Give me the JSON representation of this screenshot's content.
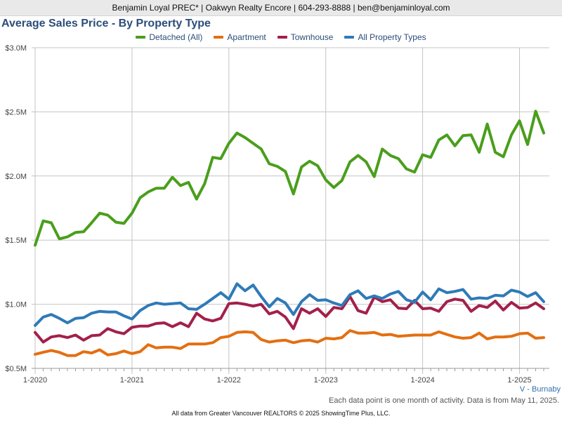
{
  "header": {
    "text": "Benjamin Loyal PREC* | Oakwyn Realty Encore | 604-293-8888 | ben@benjaminloyal.com"
  },
  "region_label": "V - Burnaby",
  "footnote": "Each data point is one month of activity. Data is from May 11, 2025.",
  "source_note": "All data from Greater Vancouver REALTORS © 2025 ShowingTime Plus, LLC.",
  "chart_data": {
    "type": "line",
    "title": "Average Sales Price - By Property Type",
    "legend_position": "top",
    "grid": true,
    "ylim": [
      500000,
      3000000
    ],
    "yticks": [
      {
        "value": 500000,
        "label": "$0.5M"
      },
      {
        "value": 1000000,
        "label": "$1.0M"
      },
      {
        "value": 1500000,
        "label": "$1.5M"
      },
      {
        "value": 2000000,
        "label": "$2.0M"
      },
      {
        "value": 2500000,
        "label": "$2.5M"
      },
      {
        "value": 3000000,
        "label": "$3.0M"
      }
    ],
    "xticks": [
      {
        "month": "2020-01",
        "label": "1-2020"
      },
      {
        "month": "2021-01",
        "label": "1-2021"
      },
      {
        "month": "2022-01",
        "label": "1-2022"
      },
      {
        "month": "2023-01",
        "label": "1-2023"
      },
      {
        "month": "2024-01",
        "label": "1-2024"
      },
      {
        "month": "2025-01",
        "label": "1-2025"
      }
    ],
    "x": [
      "2020-01",
      "2020-02",
      "2020-03",
      "2020-04",
      "2020-05",
      "2020-06",
      "2020-07",
      "2020-08",
      "2020-09",
      "2020-10",
      "2020-11",
      "2020-12",
      "2021-01",
      "2021-02",
      "2021-03",
      "2021-04",
      "2021-05",
      "2021-06",
      "2021-07",
      "2021-08",
      "2021-09",
      "2021-10",
      "2021-11",
      "2021-12",
      "2022-01",
      "2022-02",
      "2022-03",
      "2022-04",
      "2022-05",
      "2022-06",
      "2022-07",
      "2022-08",
      "2022-09",
      "2022-10",
      "2022-11",
      "2022-12",
      "2023-01",
      "2023-02",
      "2023-03",
      "2023-04",
      "2023-05",
      "2023-06",
      "2023-07",
      "2023-08",
      "2023-09",
      "2023-10",
      "2023-11",
      "2023-12",
      "2024-01",
      "2024-02",
      "2024-03",
      "2024-04",
      "2024-05",
      "2024-06",
      "2024-07",
      "2024-08",
      "2024-09",
      "2024-10",
      "2024-11",
      "2024-12",
      "2025-01",
      "2025-02",
      "2025-03",
      "2025-04"
    ],
    "series": [
      {
        "name": "Detached (All)",
        "color": "#4a9e1c",
        "values": [
          1460000,
          1650000,
          1635000,
          1510000,
          1525000,
          1560000,
          1565000,
          1635000,
          1710000,
          1695000,
          1640000,
          1630000,
          1710000,
          1830000,
          1875000,
          1905000,
          1905000,
          1990000,
          1925000,
          1950000,
          1820000,
          1940000,
          2145000,
          2135000,
          2255000,
          2335000,
          2300000,
          2255000,
          2210000,
          2095000,
          2075000,
          2035000,
          1860000,
          2070000,
          2115000,
          2080000,
          1970000,
          1910000,
          1965000,
          2110000,
          2160000,
          2110000,
          1995000,
          2210000,
          2160000,
          2135000,
          2055000,
          2030000,
          2165000,
          2145000,
          2280000,
          2320000,
          2235000,
          2315000,
          2320000,
          2185000,
          2405000,
          2185000,
          2150000,
          2320000,
          2430000,
          2245000,
          2505000,
          2335000
        ]
      },
      {
        "name": "Apartment",
        "color": "#e36f12",
        "values": [
          610000,
          625000,
          640000,
          625000,
          600000,
          600000,
          630000,
          620000,
          645000,
          605000,
          615000,
          635000,
          615000,
          630000,
          685000,
          660000,
          665000,
          665000,
          655000,
          690000,
          690000,
          690000,
          700000,
          740000,
          750000,
          780000,
          785000,
          780000,
          725000,
          705000,
          715000,
          720000,
          700000,
          715000,
          720000,
          705000,
          735000,
          730000,
          740000,
          795000,
          775000,
          775000,
          780000,
          760000,
          765000,
          750000,
          755000,
          760000,
          760000,
          760000,
          785000,
          765000,
          745000,
          735000,
          740000,
          775000,
          730000,
          745000,
          745000,
          750000,
          770000,
          775000,
          735000,
          740000
        ]
      },
      {
        "name": "Townhouse",
        "color": "#a3204a",
        "values": [
          780000,
          705000,
          745000,
          755000,
          740000,
          760000,
          720000,
          755000,
          760000,
          810000,
          785000,
          770000,
          820000,
          830000,
          830000,
          850000,
          855000,
          825000,
          855000,
          825000,
          930000,
          885000,
          870000,
          890000,
          1005000,
          1010000,
          1000000,
          985000,
          1000000,
          925000,
          945000,
          900000,
          810000,
          965000,
          930000,
          965000,
          905000,
          975000,
          965000,
          1060000,
          950000,
          930000,
          1055000,
          1020000,
          1035000,
          970000,
          965000,
          1030000,
          965000,
          970000,
          945000,
          1020000,
          1040000,
          1030000,
          945000,
          990000,
          975000,
          1025000,
          955000,
          1015000,
          970000,
          975000,
          1010000,
          965000
        ]
      },
      {
        "name": "All Property Types",
        "color": "#2f7ab8",
        "values": [
          835000,
          900000,
          920000,
          890000,
          855000,
          890000,
          895000,
          930000,
          945000,
          940000,
          940000,
          910000,
          885000,
          950000,
          990000,
          1010000,
          1000000,
          1005000,
          1010000,
          965000,
          960000,
          1000000,
          1045000,
          1090000,
          1040000,
          1160000,
          1105000,
          1150000,
          1060000,
          980000,
          1045000,
          1010000,
          920000,
          1020000,
          1075000,
          1030000,
          1035000,
          1010000,
          990000,
          1075000,
          1105000,
          1045000,
          1065000,
          1045000,
          1080000,
          1100000,
          1035000,
          1015000,
          1095000,
          1035000,
          1120000,
          1090000,
          1100000,
          1115000,
          1040000,
          1050000,
          1045000,
          1070000,
          1065000,
          1110000,
          1095000,
          1060000,
          1090000,
          1020000
        ]
      }
    ]
  }
}
